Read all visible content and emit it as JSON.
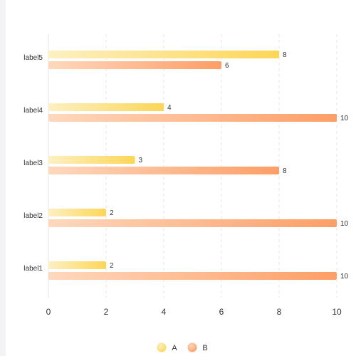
{
  "chart_data": {
    "type": "bar",
    "orientation": "horizontal",
    "categories": [
      "label1",
      "label2",
      "label3",
      "label4",
      "label5"
    ],
    "series": [
      {
        "name": "A",
        "values": [
          2,
          2,
          3,
          4,
          8
        ]
      },
      {
        "name": "B",
        "values": [
          10,
          10,
          8,
          10,
          6
        ]
      }
    ],
    "xlim": [
      0,
      10
    ],
    "xticks": [
      0,
      2,
      4,
      6,
      8,
      10
    ],
    "grid": "vertical-dashed",
    "legend_position": "bottom-center",
    "colors": {
      "A": {
        "start": "#fdf0c2",
        "end": "#fdd657"
      },
      "B": {
        "start": "#fed8bd",
        "end": "#fd9e66"
      }
    }
  }
}
